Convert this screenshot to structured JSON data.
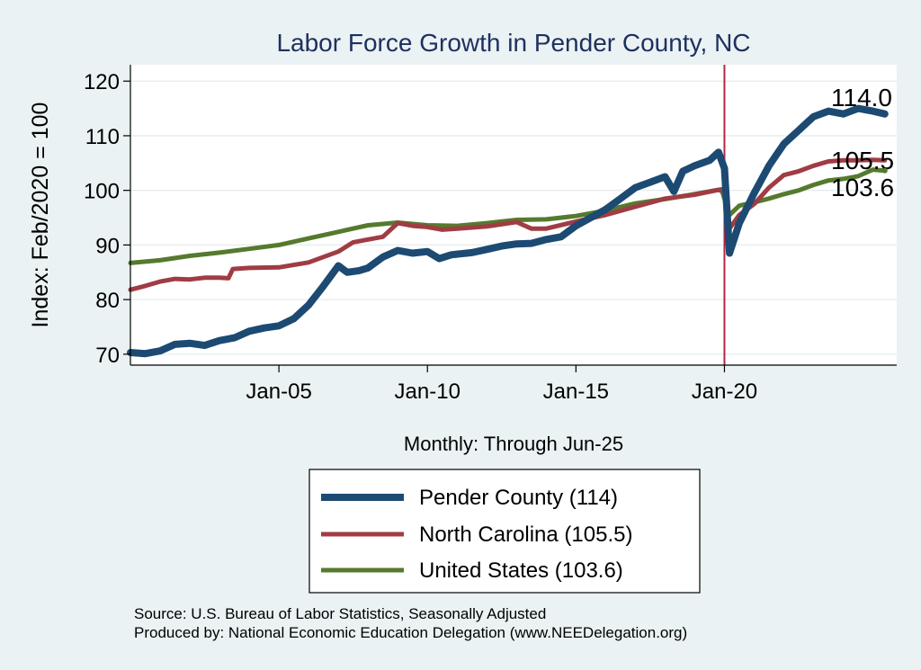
{
  "chart_data": {
    "type": "line",
    "title": "Labor Force Growth in Pender  County, NC",
    "xlabel": "Monthly: Through Jun-25",
    "ylabel": "Index: Feb/2020 = 100",
    "ylim": [
      68,
      123
    ],
    "xlim": [
      2000.0,
      2025.8
    ],
    "y_ticks": [
      70,
      80,
      90,
      100,
      110,
      120
    ],
    "x_ticks": [
      {
        "value": 2005.0,
        "label": "Jan-05"
      },
      {
        "value": 2010.0,
        "label": "Jan-10"
      },
      {
        "value": 2015.0,
        "label": "Jan-15"
      },
      {
        "value": 2020.0,
        "label": "Jan-20"
      }
    ],
    "reference_line": {
      "x": 2020.0,
      "color": "#b22746"
    },
    "series": [
      {
        "name": "Pender County",
        "legend": "Pender  County (114)",
        "end_label": "114.0",
        "color": "#1c4a72",
        "width": 8,
        "points": [
          [
            2000.0,
            70.3
          ],
          [
            2000.5,
            70.1
          ],
          [
            2001.0,
            70.6
          ],
          [
            2001.5,
            71.8
          ],
          [
            2002.0,
            72.0
          ],
          [
            2002.5,
            71.6
          ],
          [
            2003.0,
            72.5
          ],
          [
            2003.5,
            73.0
          ],
          [
            2004.0,
            74.2
          ],
          [
            2004.5,
            74.8
          ],
          [
            2005.0,
            75.2
          ],
          [
            2005.5,
            76.5
          ],
          [
            2006.0,
            79.0
          ],
          [
            2006.5,
            82.5
          ],
          [
            2007.0,
            86.2
          ],
          [
            2007.3,
            85.0
          ],
          [
            2007.7,
            85.3
          ],
          [
            2008.0,
            85.8
          ],
          [
            2008.5,
            87.8
          ],
          [
            2009.0,
            89.0
          ],
          [
            2009.5,
            88.5
          ],
          [
            2010.0,
            88.8
          ],
          [
            2010.4,
            87.5
          ],
          [
            2010.8,
            88.2
          ],
          [
            2011.5,
            88.6
          ],
          [
            2012.0,
            89.2
          ],
          [
            2012.5,
            89.8
          ],
          [
            2013.0,
            90.2
          ],
          [
            2013.5,
            90.3
          ],
          [
            2014.0,
            91.0
          ],
          [
            2014.5,
            91.5
          ],
          [
            2015.0,
            93.5
          ],
          [
            2015.5,
            95.0
          ],
          [
            2016.0,
            96.5
          ],
          [
            2016.5,
            98.5
          ],
          [
            2017.0,
            100.5
          ],
          [
            2017.5,
            101.5
          ],
          [
            2018.0,
            102.5
          ],
          [
            2018.3,
            99.8
          ],
          [
            2018.6,
            103.5
          ],
          [
            2019.0,
            104.5
          ],
          [
            2019.5,
            105.5
          ],
          [
            2019.8,
            107.0
          ],
          [
            2020.0,
            104.0
          ],
          [
            2020.17,
            88.5
          ],
          [
            2020.5,
            94.0
          ],
          [
            2021.0,
            99.5
          ],
          [
            2021.5,
            104.5
          ],
          [
            2022.0,
            108.5
          ],
          [
            2022.5,
            111.0
          ],
          [
            2023.0,
            113.5
          ],
          [
            2023.5,
            114.5
          ],
          [
            2024.0,
            114.0
          ],
          [
            2024.5,
            115.0
          ],
          [
            2025.0,
            114.5
          ],
          [
            2025.4,
            114.0
          ]
        ]
      },
      {
        "name": "North Carolina",
        "legend": "North Carolina (105.5)",
        "end_label": "105.5",
        "color": "#a03c44",
        "width": 5,
        "points": [
          [
            2000.0,
            81.8
          ],
          [
            2000.5,
            82.5
          ],
          [
            2001.0,
            83.3
          ],
          [
            2001.5,
            83.8
          ],
          [
            2002.0,
            83.7
          ],
          [
            2002.5,
            84.0
          ],
          [
            2003.0,
            84.0
          ],
          [
            2003.3,
            83.9
          ],
          [
            2003.45,
            85.6
          ],
          [
            2004.0,
            85.8
          ],
          [
            2005.0,
            85.9
          ],
          [
            2006.0,
            86.8
          ],
          [
            2007.0,
            88.8
          ],
          [
            2007.5,
            90.5
          ],
          [
            2008.0,
            91.0
          ],
          [
            2008.5,
            91.5
          ],
          [
            2009.0,
            94.0
          ],
          [
            2009.5,
            93.5
          ],
          [
            2010.0,
            93.3
          ],
          [
            2010.5,
            92.8
          ],
          [
            2011.0,
            93.0
          ],
          [
            2012.0,
            93.4
          ],
          [
            2013.0,
            94.2
          ],
          [
            2013.5,
            93.0
          ],
          [
            2014.0,
            93.0
          ],
          [
            2015.0,
            94.3
          ],
          [
            2016.0,
            95.5
          ],
          [
            2017.0,
            97.0
          ],
          [
            2018.0,
            98.5
          ],
          [
            2019.0,
            99.2
          ],
          [
            2019.8,
            100.1
          ],
          [
            2020.05,
            99.6
          ],
          [
            2020.17,
            93.0
          ],
          [
            2020.5,
            95.5
          ],
          [
            2021.0,
            97.5
          ],
          [
            2021.5,
            100.5
          ],
          [
            2022.0,
            102.8
          ],
          [
            2022.5,
            103.5
          ],
          [
            2023.0,
            104.5
          ],
          [
            2023.5,
            105.3
          ],
          [
            2024.0,
            105.5
          ],
          [
            2024.5,
            105.5
          ],
          [
            2025.0,
            105.6
          ],
          [
            2025.4,
            105.5
          ]
        ]
      },
      {
        "name": "United States",
        "legend": "United States (103.6)",
        "end_label": "103.6",
        "color": "#557a2e",
        "width": 5,
        "points": [
          [
            2000.0,
            86.7
          ],
          [
            2001.0,
            87.2
          ],
          [
            2002.0,
            88.0
          ],
          [
            2003.0,
            88.6
          ],
          [
            2004.0,
            89.3
          ],
          [
            2005.0,
            90.0
          ],
          [
            2006.0,
            91.2
          ],
          [
            2007.0,
            92.4
          ],
          [
            2008.0,
            93.6
          ],
          [
            2009.0,
            94.1
          ],
          [
            2010.0,
            93.6
          ],
          [
            2011.0,
            93.5
          ],
          [
            2012.0,
            94.0
          ],
          [
            2013.0,
            94.6
          ],
          [
            2014.0,
            94.7
          ],
          [
            2015.0,
            95.3
          ],
          [
            2016.0,
            96.3
          ],
          [
            2017.0,
            97.6
          ],
          [
            2018.0,
            98.4
          ],
          [
            2019.0,
            99.3
          ],
          [
            2019.9,
            100.2
          ],
          [
            2020.17,
            95.5
          ],
          [
            2020.5,
            97.2
          ],
          [
            2021.0,
            97.8
          ],
          [
            2021.5,
            98.5
          ],
          [
            2022.0,
            99.3
          ],
          [
            2022.5,
            100.0
          ],
          [
            2023.0,
            101.0
          ],
          [
            2023.5,
            101.8
          ],
          [
            2024.0,
            102.1
          ],
          [
            2024.5,
            102.6
          ],
          [
            2025.0,
            103.8
          ],
          [
            2025.4,
            103.6
          ]
        ]
      }
    ]
  },
  "footer": {
    "source": "Source: U.S. Bureau of Labor Statistics, Seasonally Adjusted",
    "produced": "Produced by: National Economic Education Delegation (www.NEEDelegation.org)"
  }
}
